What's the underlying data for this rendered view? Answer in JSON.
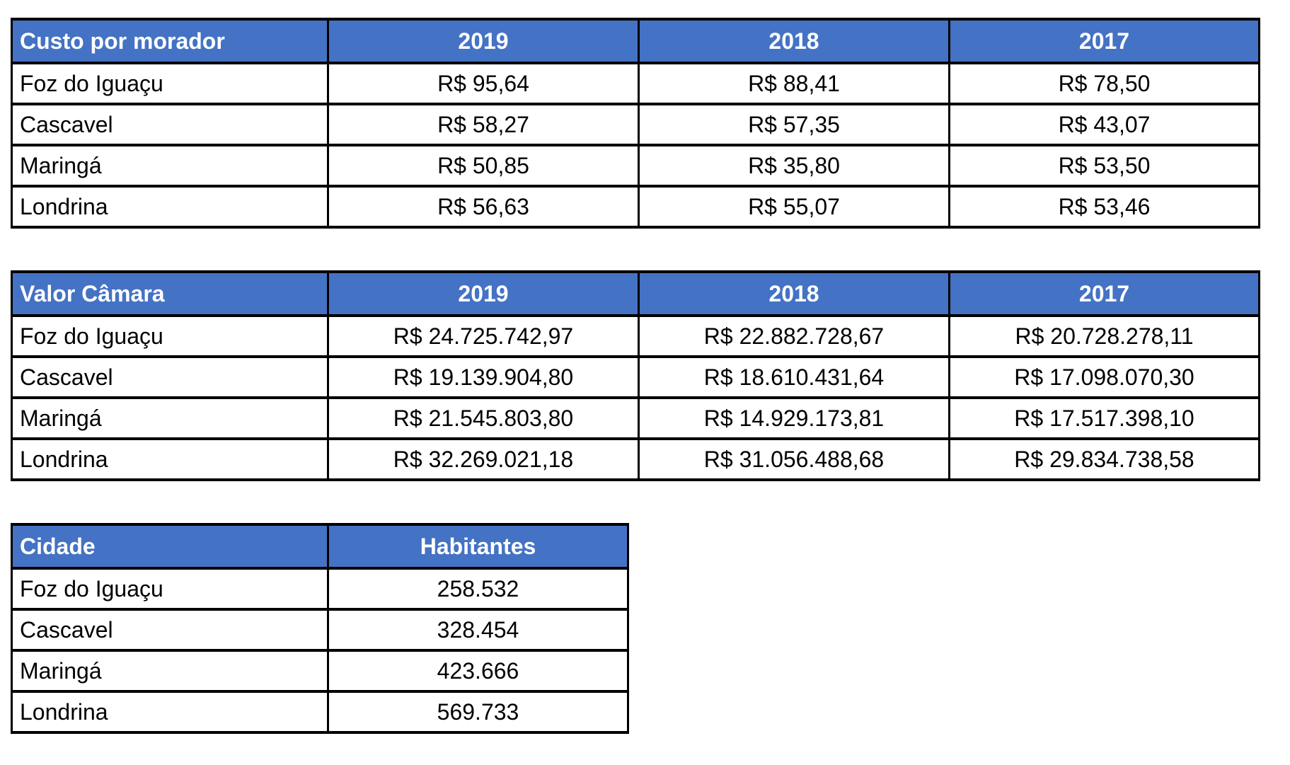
{
  "colors": {
    "header_bg": "#4472C4",
    "header_text": "#ffffff",
    "border": "#000000",
    "cell_text": "#000000",
    "page_bg": "#ffffff"
  },
  "tables": [
    {
      "title": "Custo por morador",
      "header": [
        "Custo por morador",
        "2019",
        "2018",
        "2017"
      ],
      "rows": [
        [
          "Foz do Iguaçu",
          "R$ 95,64",
          "R$ 88,41",
          "R$ 78,50"
        ],
        [
          "Cascavel",
          "R$ 58,27",
          "R$ 57,35",
          "R$ 43,07"
        ],
        [
          "Maringá",
          "R$ 50,85",
          "R$ 35,80",
          "R$ 53,50"
        ],
        [
          "Londrina",
          "R$ 56,63",
          "R$ 55,07",
          "R$ 53,46"
        ]
      ]
    },
    {
      "title": "Valor Câmara",
      "header": [
        "Valor Câmara",
        "2019",
        "2018",
        "2017"
      ],
      "rows": [
        [
          "Foz do Iguaçu",
          "R$ 24.725.742,97",
          "R$ 22.882.728,67",
          "R$ 20.728.278,11"
        ],
        [
          "Cascavel",
          "R$ 19.139.904,80",
          "R$ 18.610.431,64",
          "R$ 17.098.070,30"
        ],
        [
          "Maringá",
          "R$ 21.545.803,80",
          "R$ 14.929.173,81",
          "R$ 17.517.398,10"
        ],
        [
          "Londrina",
          "R$ 32.269.021,18",
          "R$ 31.056.488,68",
          "R$ 29.834.738,58"
        ]
      ]
    },
    {
      "title": "Cidade",
      "header": [
        "Cidade",
        "Habitantes"
      ],
      "rows": [
        [
          "Foz do Iguaçu",
          "258.532"
        ],
        [
          "Cascavel",
          "328.454"
        ],
        [
          "Maringá",
          "423.666"
        ],
        [
          "Londrina",
          "569.733"
        ]
      ]
    }
  ]
}
